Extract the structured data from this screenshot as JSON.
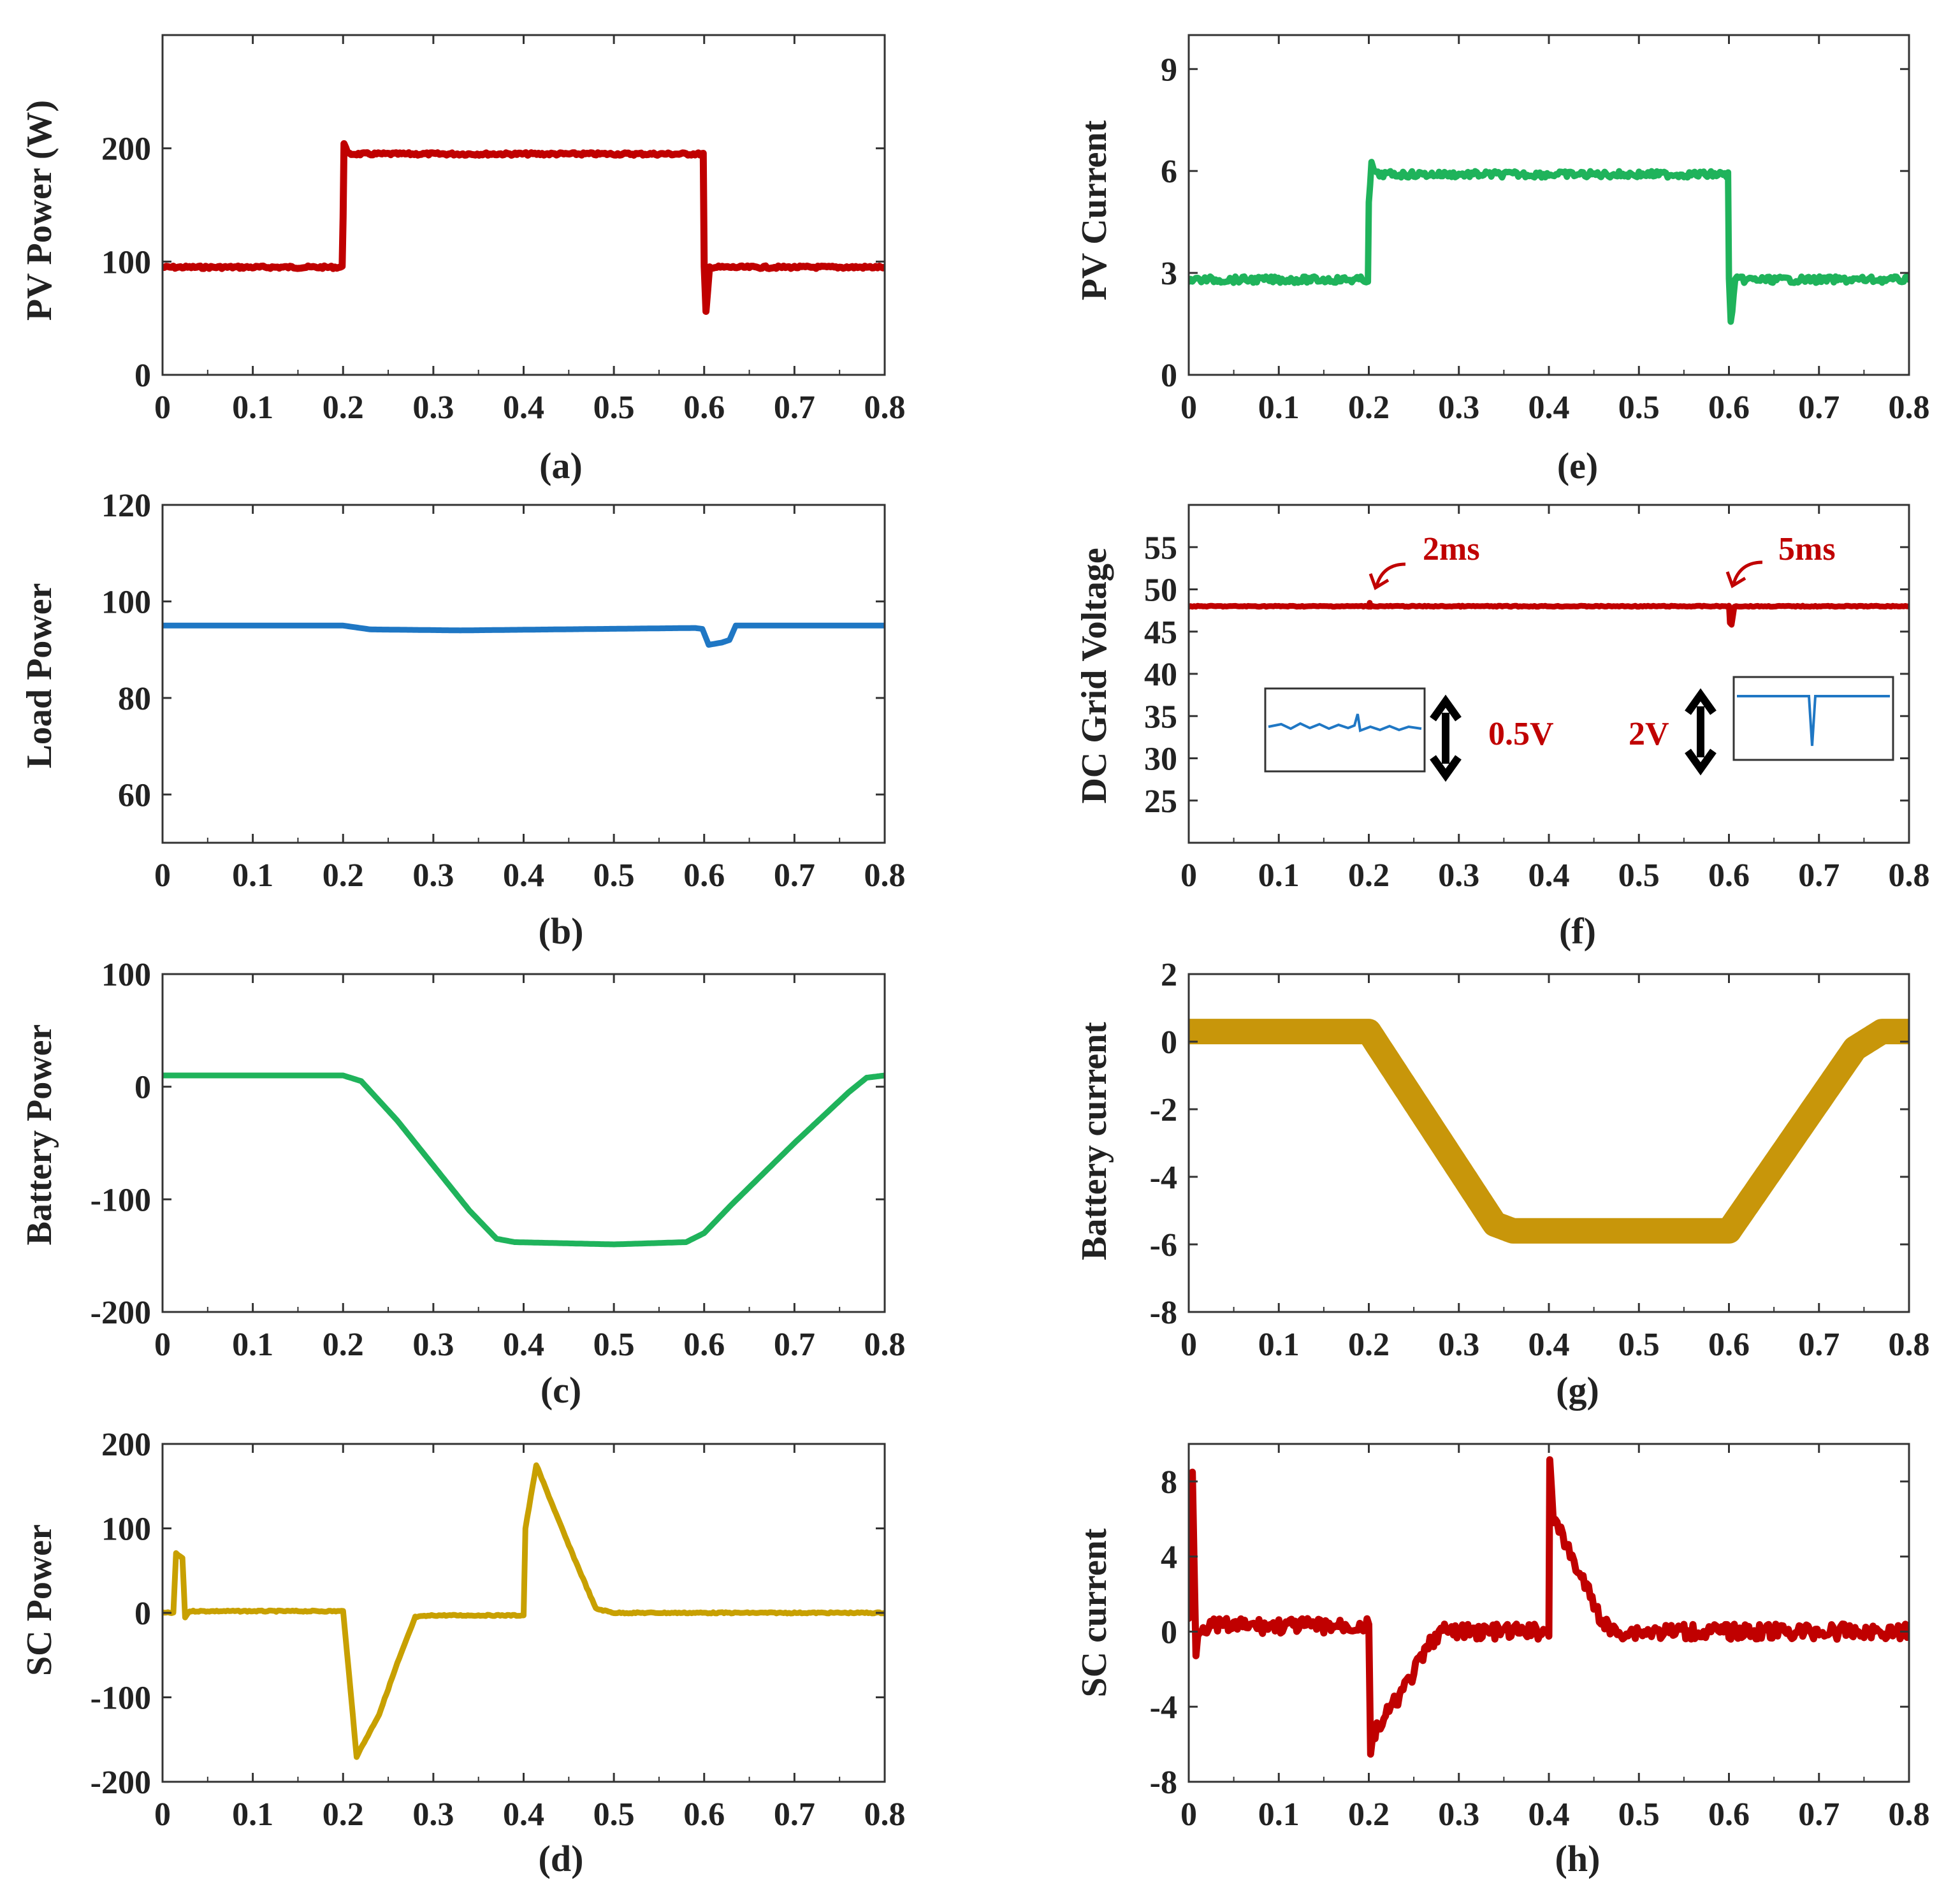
{
  "chart_data": [
    {
      "id": "a",
      "type": "line",
      "caption": "(a)",
      "ylabel": "PV Power (W)",
      "xlim": [
        0,
        0.8
      ],
      "ylim": [
        0,
        300
      ],
      "xticks": [
        0,
        0.1,
        0.2,
        0.3,
        0.4,
        0.5,
        0.6,
        0.7,
        0.8
      ],
      "xtick_labels": [
        "0",
        "0.1",
        "0.2",
        "0.3",
        "0.4",
        "0.5",
        "0.6",
        "0.7",
        "0.8"
      ],
      "yticks": [
        0,
        100,
        200
      ],
      "ytick_labels": [
        "0",
        "100",
        "200"
      ],
      "color": "#c00000",
      "stroke_width": 11,
      "noise": 2,
      "series": [
        {
          "name": "PV Power",
          "x": [
            0,
            0.199,
            0.2,
            0.201,
            0.205,
            0.59,
            0.599,
            0.6,
            0.602,
            0.606,
            0.8
          ],
          "y": [
            95,
            95,
            140,
            205,
            195,
            195,
            195,
            95,
            55,
            95,
            95
          ]
        }
      ]
    },
    {
      "id": "b",
      "type": "line",
      "caption": "(b)",
      "ylabel": "Load Power",
      "xlim": [
        0,
        0.8
      ],
      "ylim": [
        50,
        120
      ],
      "xticks": [
        0,
        0.1,
        0.2,
        0.3,
        0.4,
        0.5,
        0.6,
        0.7,
        0.8
      ],
      "xtick_labels": [
        "0",
        "0.1",
        "0.2",
        "0.3",
        "0.4",
        "0.5",
        "0.6",
        "0.7",
        "0.8"
      ],
      "yticks": [
        60,
        80,
        100,
        120
      ],
      "ytick_labels": [
        "60",
        "80",
        "100",
        "120"
      ],
      "color": "#1f77c4",
      "stroke_width": 9,
      "noise": 0,
      "series": [
        {
          "name": "Load Power",
          "x": [
            0,
            0.2,
            0.23,
            0.33,
            0.59,
            0.598,
            0.605,
            0.62,
            0.628,
            0.635,
            0.8
          ],
          "y": [
            95,
            95,
            94.2,
            94,
            94.5,
            94.3,
            91,
            91.5,
            92,
            95,
            95
          ]
        }
      ]
    },
    {
      "id": "c",
      "type": "line",
      "caption": "(c)",
      "ylabel": "Battery Power",
      "xlim": [
        0,
        0.8
      ],
      "ylim": [
        -200,
        100
      ],
      "xticks": [
        0,
        0.1,
        0.2,
        0.3,
        0.4,
        0.5,
        0.6,
        0.7,
        0.8
      ],
      "xtick_labels": [
        "0",
        "0.1",
        "0.2",
        "0.3",
        "0.4",
        "0.5",
        "0.6",
        "0.7",
        "0.8"
      ],
      "yticks": [
        -200,
        -100,
        0,
        100
      ],
      "ytick_labels": [
        "-200",
        "-100",
        "0",
        "100"
      ],
      "color": "#1fb35b",
      "stroke_width": 9,
      "noise": 0,
      "series": [
        {
          "name": "Battery Power",
          "x": [
            0,
            0.2,
            0.22,
            0.26,
            0.3,
            0.34,
            0.37,
            0.39,
            0.5,
            0.58,
            0.6,
            0.63,
            0.7,
            0.76,
            0.78,
            0.8
          ],
          "y": [
            10,
            10,
            5,
            -30,
            -70,
            -110,
            -135,
            -138,
            -140,
            -138,
            -130,
            -105,
            -50,
            -5,
            8,
            10
          ]
        }
      ]
    },
    {
      "id": "d",
      "type": "line",
      "caption": "(d)",
      "ylabel": "SC Power",
      "xlim": [
        0,
        0.8
      ],
      "ylim": [
        -200,
        200
      ],
      "xticks": [
        0,
        0.1,
        0.2,
        0.3,
        0.4,
        0.5,
        0.6,
        0.7,
        0.8
      ],
      "xtick_labels": [
        "0",
        "0.1",
        "0.2",
        "0.3",
        "0.4",
        "0.5",
        "0.6",
        "0.7",
        "0.8"
      ],
      "yticks": [
        -200,
        -100,
        0,
        100,
        200
      ],
      "ytick_labels": [
        "-200",
        "-100",
        "0",
        "100",
        "200"
      ],
      "color": "#c8a000",
      "stroke_width": 9,
      "noise": 1,
      "series": [
        {
          "name": "SC Power",
          "x": [
            0,
            0.012,
            0.015,
            0.022,
            0.025,
            0.03,
            0.2,
            0.202,
            0.215,
            0.24,
            0.26,
            0.28,
            0.3,
            0.4,
            0.402,
            0.414,
            0.45,
            0.48,
            0.5,
            0.8
          ],
          "y": [
            0,
            0,
            70,
            65,
            -5,
            2,
            2,
            -20,
            -170,
            -120,
            -60,
            -5,
            -3,
            -3,
            100,
            175,
            80,
            5,
            0,
            0
          ]
        }
      ]
    },
    {
      "id": "e",
      "type": "line",
      "caption": "(e)",
      "ylabel": "PV Current",
      "xlim": [
        0,
        0.8
      ],
      "ylim": [
        0,
        10
      ],
      "xticks": [
        0,
        0.1,
        0.2,
        0.3,
        0.4,
        0.5,
        0.6,
        0.7,
        0.8
      ],
      "xtick_labels": [
        "0",
        "0.1",
        "0.2",
        "0.3",
        "0.4",
        "0.5",
        "0.6",
        "0.7",
        "0.8"
      ],
      "yticks": [
        0,
        3,
        6,
        9
      ],
      "ytick_labels": [
        "0",
        "3",
        "6",
        "9"
      ],
      "color": "#1fb35b",
      "stroke_width": 10,
      "noise": 5,
      "series": [
        {
          "name": "PV Current",
          "x": [
            0,
            0.199,
            0.2,
            0.203,
            0.208,
            0.59,
            0.599,
            0.6,
            0.602,
            0.607,
            0.8
          ],
          "y": [
            2.8,
            2.8,
            5,
            6.2,
            5.9,
            5.9,
            5.9,
            2.8,
            1.5,
            2.8,
            2.8
          ]
        }
      ]
    },
    {
      "id": "f",
      "type": "line",
      "caption": "(f)",
      "ylabel": "DC Grid Voltage",
      "xlim": [
        0,
        0.8
      ],
      "ylim": [
        20,
        60
      ],
      "xticks": [
        0,
        0.1,
        0.2,
        0.3,
        0.4,
        0.5,
        0.6,
        0.7,
        0.8
      ],
      "xtick_labels": [
        "0",
        "0.1",
        "0.2",
        "0.3",
        "0.4",
        "0.5",
        "0.6",
        "0.7",
        "0.8"
      ],
      "yticks": [
        25,
        30,
        35,
        40,
        45,
        50,
        55
      ],
      "ytick_labels": [
        "25",
        "30",
        "35",
        "40",
        "45",
        "50",
        "55"
      ],
      "color": "#c00000",
      "stroke_width": 9,
      "noise": 0.8,
      "series": [
        {
          "name": "DC Grid Voltage",
          "x": [
            0,
            0.2,
            0.201,
            0.202,
            0.6,
            0.601,
            0.603,
            0.606,
            0.8
          ],
          "y": [
            48,
            48,
            48.4,
            48,
            48,
            46,
            45.8,
            48,
            48
          ]
        }
      ],
      "annotations": [
        {
          "text": "2ms",
          "x": 0.2,
          "y": 48
        },
        {
          "text": "5ms",
          "x": 0.6,
          "y": 48
        },
        {
          "text": "0.5V",
          "span": "inset-1"
        },
        {
          "text": "2V",
          "span": "inset-2"
        }
      ]
    },
    {
      "id": "g",
      "type": "line",
      "caption": "(g)",
      "ylabel": "Battery current",
      "xlim": [
        0,
        0.8
      ],
      "ylim": [
        -8,
        2
      ],
      "xticks": [
        0,
        0.1,
        0.2,
        0.3,
        0.4,
        0.5,
        0.6,
        0.7,
        0.8
      ],
      "xtick_labels": [
        "0",
        "0.1",
        "0.2",
        "0.3",
        "0.4",
        "0.5",
        "0.6",
        "0.7",
        "0.8"
      ],
      "yticks": [
        -8,
        -6,
        -4,
        -2,
        0,
        2
      ],
      "ytick_labels": [
        "-8",
        "-6",
        "-4",
        "-2",
        "0",
        "2"
      ],
      "color": "#c8960a",
      "stroke_width": 40,
      "noise": 0,
      "series": [
        {
          "name": "Battery current",
          "x": [
            0,
            0.2,
            0.34,
            0.36,
            0.6,
            0.74,
            0.77,
            0.8
          ],
          "y": [
            0.3,
            0.3,
            -5.4,
            -5.6,
            -5.6,
            -0.2,
            0.3,
            0.3
          ]
        }
      ]
    },
    {
      "id": "h",
      "type": "line",
      "caption": "(h)",
      "ylabel": "SC current",
      "xlim": [
        0,
        0.8
      ],
      "ylim": [
        -8,
        10
      ],
      "xticks": [
        0,
        0.1,
        0.2,
        0.3,
        0.4,
        0.5,
        0.6,
        0.7,
        0.8
      ],
      "xtick_labels": [
        "0",
        "0.1",
        "0.2",
        "0.3",
        "0.4",
        "0.5",
        "0.6",
        "0.7",
        "0.8"
      ],
      "yticks": [
        -8,
        -4,
        0,
        4,
        8
      ],
      "ytick_labels": [
        "-8",
        "-4",
        "0",
        "4",
        "8"
      ],
      "color": "#c00000",
      "stroke_width": 11,
      "noise": 12,
      "series": [
        {
          "name": "SC current",
          "x": [
            0,
            0.004,
            0.008,
            0.012,
            0.2,
            0.202,
            0.205,
            0.24,
            0.27,
            0.28,
            0.4,
            0.401,
            0.405,
            0.43,
            0.46,
            0.47,
            0.8
          ],
          "y": [
            0.5,
            8.5,
            -1,
            0.3,
            0.3,
            -6.5,
            -5.5,
            -3,
            -0.5,
            0,
            0,
            9.5,
            6,
            3.5,
            0.5,
            0,
            0
          ]
        }
      ]
    }
  ]
}
